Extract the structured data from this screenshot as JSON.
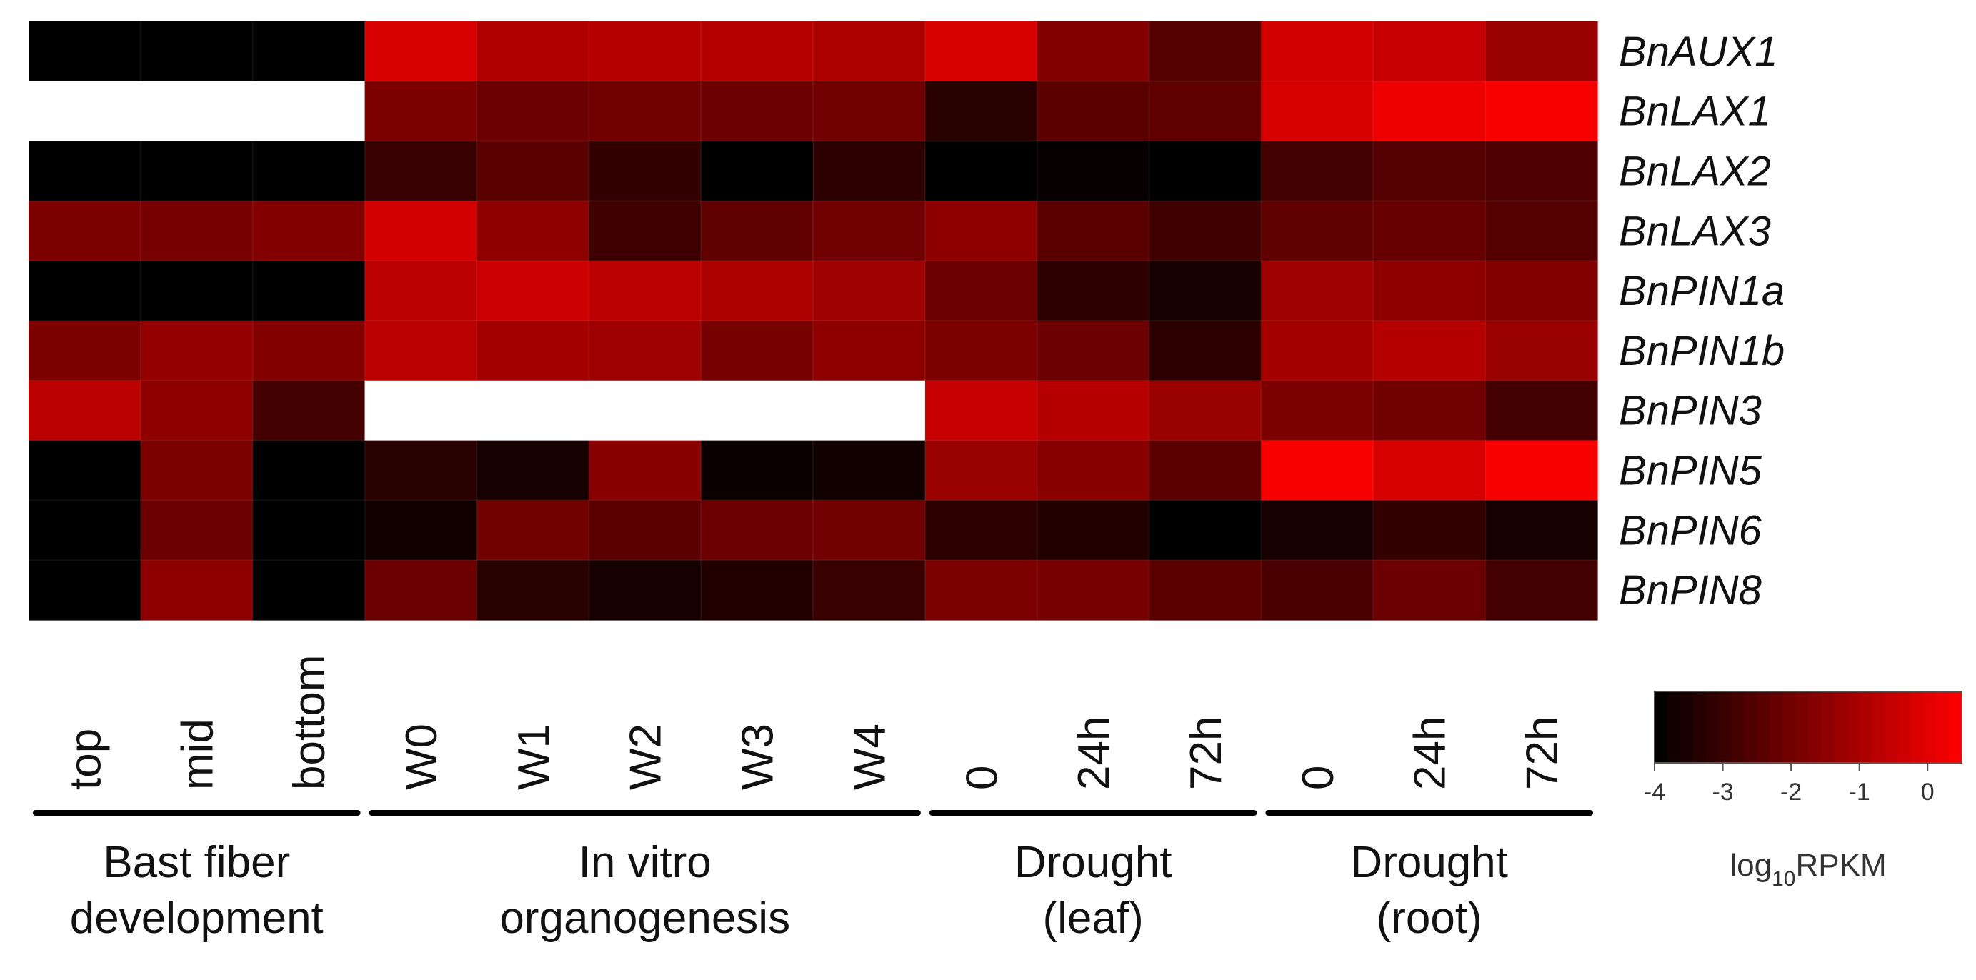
{
  "chart_data": {
    "type": "heatmap",
    "title": "",
    "rows": [
      "BnAUX1",
      "BnLAX1",
      "BnLAX2",
      "BnLAX3",
      "BnPIN1a",
      "BnPIN1b",
      "BnPIN3",
      "BnPIN5",
      "BnPIN6",
      "BnPIN8"
    ],
    "columns": [
      "top",
      "mid",
      "bottom",
      "W0",
      "W1",
      "W2",
      "W3",
      "W4",
      "0",
      "24h",
      "72h",
      "0",
      "24h",
      "72h"
    ],
    "groups": [
      {
        "label_lines": [
          "Bast fiber",
          "development"
        ],
        "columns": [
          0,
          2
        ]
      },
      {
        "label_lines": [
          "In vitro",
          "organogenesis"
        ],
        "columns": [
          3,
          7
        ]
      },
      {
        "label_lines": [
          "Drought",
          "(leaf)"
        ],
        "columns": [
          8,
          10
        ]
      },
      {
        "label_lines": [
          "Drought",
          "(root)"
        ],
        "columns": [
          11,
          13
        ]
      }
    ],
    "values": [
      [
        -4.0,
        -4.0,
        -4.0,
        -0.2,
        -0.9,
        -0.8,
        -0.8,
        -1.0,
        -0.2,
        -1.7,
        -2.5,
        -0.3,
        -0.5,
        -1.3
      ],
      [
        null,
        null,
        null,
        -1.8,
        -2.1,
        -2.0,
        -2.1,
        -2.0,
        -3.3,
        -2.4,
        -2.3,
        -0.2,
        0.2,
        0.4
      ],
      [
        -4.0,
        -4.0,
        -4.0,
        -3.0,
        -2.4,
        -3.1,
        -4.0,
        -3.2,
        -4.0,
        -3.9,
        -4.0,
        -2.8,
        -2.5,
        -2.6
      ],
      [
        -1.8,
        -1.9,
        -1.7,
        -0.3,
        -1.5,
        -2.9,
        -2.3,
        -2.0,
        -1.5,
        -2.4,
        -2.9,
        -2.3,
        -2.2,
        -2.5
      ],
      [
        -4.0,
        -4.0,
        -4.0,
        -0.7,
        -0.4,
        -0.7,
        -1.0,
        -1.2,
        -2.1,
        -3.2,
        -3.6,
        -1.2,
        -1.5,
        -1.7
      ],
      [
        -1.8,
        -1.4,
        -1.7,
        -0.7,
        -1.1,
        -1.2,
        -1.9,
        -1.5,
        -1.8,
        -2.1,
        -3.2,
        -1.1,
        -0.8,
        -1.3
      ],
      [
        -0.7,
        -1.5,
        -2.8,
        null,
        null,
        null,
        null,
        null,
        -0.5,
        -0.8,
        -1.3,
        -1.8,
        -2.0,
        -2.8
      ],
      [
        -4.0,
        -1.8,
        -4.0,
        -3.3,
        -3.6,
        -1.6,
        -3.8,
        -3.7,
        -1.3,
        -1.6,
        -2.4,
        0.4,
        -0.2,
        0.4
      ],
      [
        -4.0,
        -2.1,
        -4.0,
        -3.7,
        -2.0,
        -2.4,
        -2.1,
        -2.0,
        -3.2,
        -3.4,
        -4.0,
        -3.6,
        -3.1,
        -3.6
      ],
      [
        -4.0,
        -1.5,
        -4.0,
        -2.1,
        -3.3,
        -3.6,
        -3.4,
        -3.0,
        -1.8,
        -1.9,
        -2.4,
        -2.7,
        -2.1,
        -2.8
      ]
    ],
    "missing_value_color": "#ffffff",
    "color_scale": {
      "min": -4,
      "max": 0.5,
      "low_color": "#000000",
      "high_color": "#ff0000",
      "ticks": [
        "-4",
        "-3",
        "-2",
        "-1",
        "0"
      ],
      "tick_values": [
        -4,
        -3,
        -2,
        -1,
        0
      ],
      "title": "log10RPKM",
      "title_parts": {
        "prefix": "log",
        "subscript": "10",
        "suffix": "RPKM"
      },
      "steps": 24
    }
  }
}
